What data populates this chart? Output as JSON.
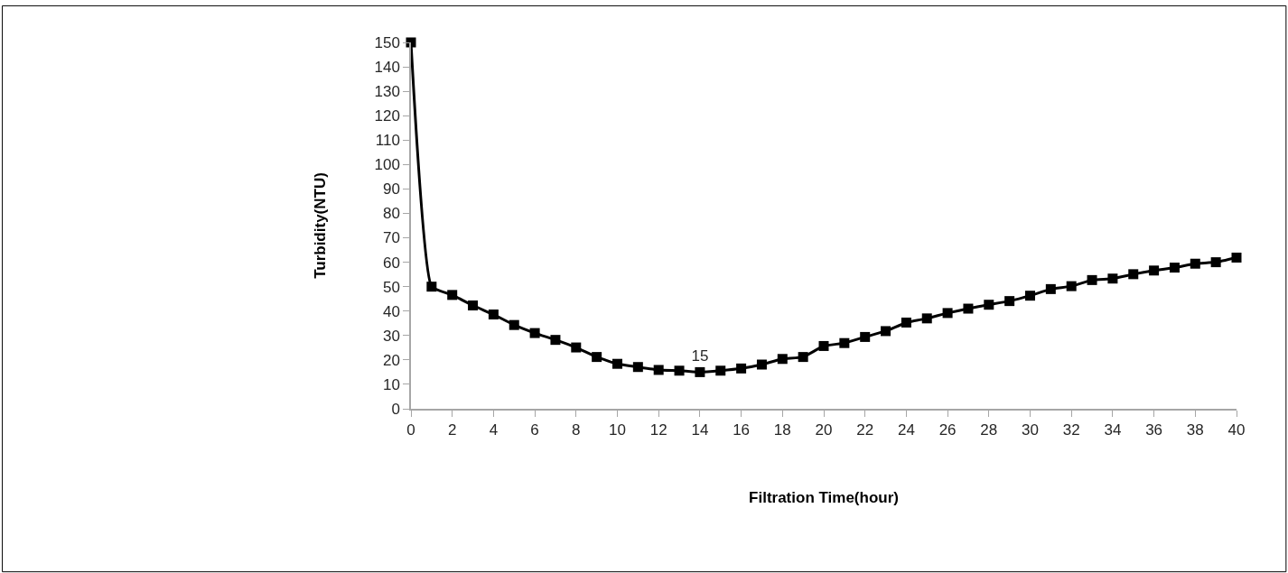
{
  "chart_data": {
    "type": "line",
    "xlabel": "Filtration Time(hour)",
    "ylabel": "Turbidity(NTU)",
    "x": [
      0,
      1,
      2,
      3,
      4,
      5,
      6,
      7,
      8,
      9,
      10,
      11,
      12,
      13,
      14,
      15,
      16,
      17,
      18,
      19,
      20,
      21,
      22,
      23,
      24,
      25,
      26,
      27,
      28,
      29,
      30,
      31,
      32,
      33,
      34,
      35,
      36,
      37,
      38,
      39,
      40
    ],
    "series": [
      {
        "color": "#000000",
        "values": [
          150,
          50,
          46.6,
          42.3,
          38.6,
          34.3,
          31,
          28.2,
          25.1,
          21.2,
          18.4,
          17.1,
          15.9,
          15.6,
          15,
          15.6,
          16.5,
          18.1,
          20.4,
          21.2,
          25.7,
          26.9,
          29.4,
          31.8,
          35.3,
          37,
          39.2,
          41,
          42.6,
          44.1,
          46.3,
          49,
          50.2,
          52.7,
          53.3,
          55.1,
          56.6,
          57.8,
          59.4,
          60,
          61.9
        ],
        "value_labels": [
          null,
          null,
          null,
          null,
          null,
          null,
          null,
          null,
          null,
          null,
          null,
          null,
          null,
          null,
          "15",
          null,
          null,
          null,
          null,
          null,
          null,
          null,
          null,
          null,
          null,
          null,
          null,
          null,
          null,
          null,
          null,
          null,
          null,
          null,
          null,
          null,
          null,
          null,
          null,
          null,
          null
        ]
      }
    ],
    "xlim": [
      0,
      40
    ],
    "xticks": [
      0,
      2,
      4,
      6,
      8,
      10,
      12,
      14,
      16,
      18,
      20,
      22,
      24,
      26,
      28,
      30,
      32,
      34,
      36,
      38,
      40
    ],
    "ylim": [
      0,
      150
    ],
    "yticks": [
      0,
      10,
      20,
      30,
      40,
      50,
      60,
      70,
      80,
      90,
      100,
      110,
      120,
      130,
      140,
      150
    ],
    "marker": "square",
    "line_style": "solid"
  }
}
